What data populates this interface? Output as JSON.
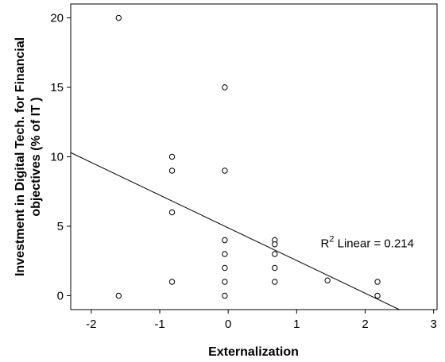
{
  "chart_data": {
    "type": "scatter",
    "xlabel": "Externalization",
    "ylabel_lines": [
      "Investment in Digital Tech. for Financial",
      "objectives (% of IT )"
    ],
    "xlim": [
      -2.3,
      3.05
    ],
    "ylim": [
      -1.0,
      21.0
    ],
    "x_ticks": [
      -2,
      -1,
      0,
      1,
      2,
      3
    ],
    "x_tick_labels": [
      "-2",
      "-1",
      "0",
      "1",
      "2",
      "3"
    ],
    "y_ticks": [
      0,
      5,
      10,
      15,
      20
    ],
    "y_tick_labels": [
      "0",
      "5",
      "10",
      "15",
      "20"
    ],
    "grid": false,
    "points": [
      {
        "x": -1.6,
        "y": 20
      },
      {
        "x": -1.6,
        "y": 0
      },
      {
        "x": -0.82,
        "y": 10
      },
      {
        "x": -0.82,
        "y": 9
      },
      {
        "x": -0.82,
        "y": 6
      },
      {
        "x": -0.82,
        "y": 1
      },
      {
        "x": -0.05,
        "y": 15
      },
      {
        "x": -0.05,
        "y": 9
      },
      {
        "x": -0.05,
        "y": 4
      },
      {
        "x": -0.05,
        "y": 3
      },
      {
        "x": -0.05,
        "y": 2
      },
      {
        "x": -0.05,
        "y": 1
      },
      {
        "x": -0.05,
        "y": 0
      },
      {
        "x": 0.68,
        "y": 4
      },
      {
        "x": 0.68,
        "y": 3.7
      },
      {
        "x": 0.68,
        "y": 3
      },
      {
        "x": 0.68,
        "y": 2
      },
      {
        "x": 0.68,
        "y": 1
      },
      {
        "x": 1.45,
        "y": 1.1
      },
      {
        "x": 2.18,
        "y": 1
      },
      {
        "x": 2.18,
        "y": 0
      }
    ],
    "fit_line": {
      "x": [
        -2.3,
        2.5
      ],
      "y": [
        10.3,
        -1.0
      ]
    },
    "annotation": {
      "prefix": "R",
      "superscript": "2",
      "text": " Linear = 0.214",
      "x": 1.35,
      "y": 3.5
    }
  }
}
